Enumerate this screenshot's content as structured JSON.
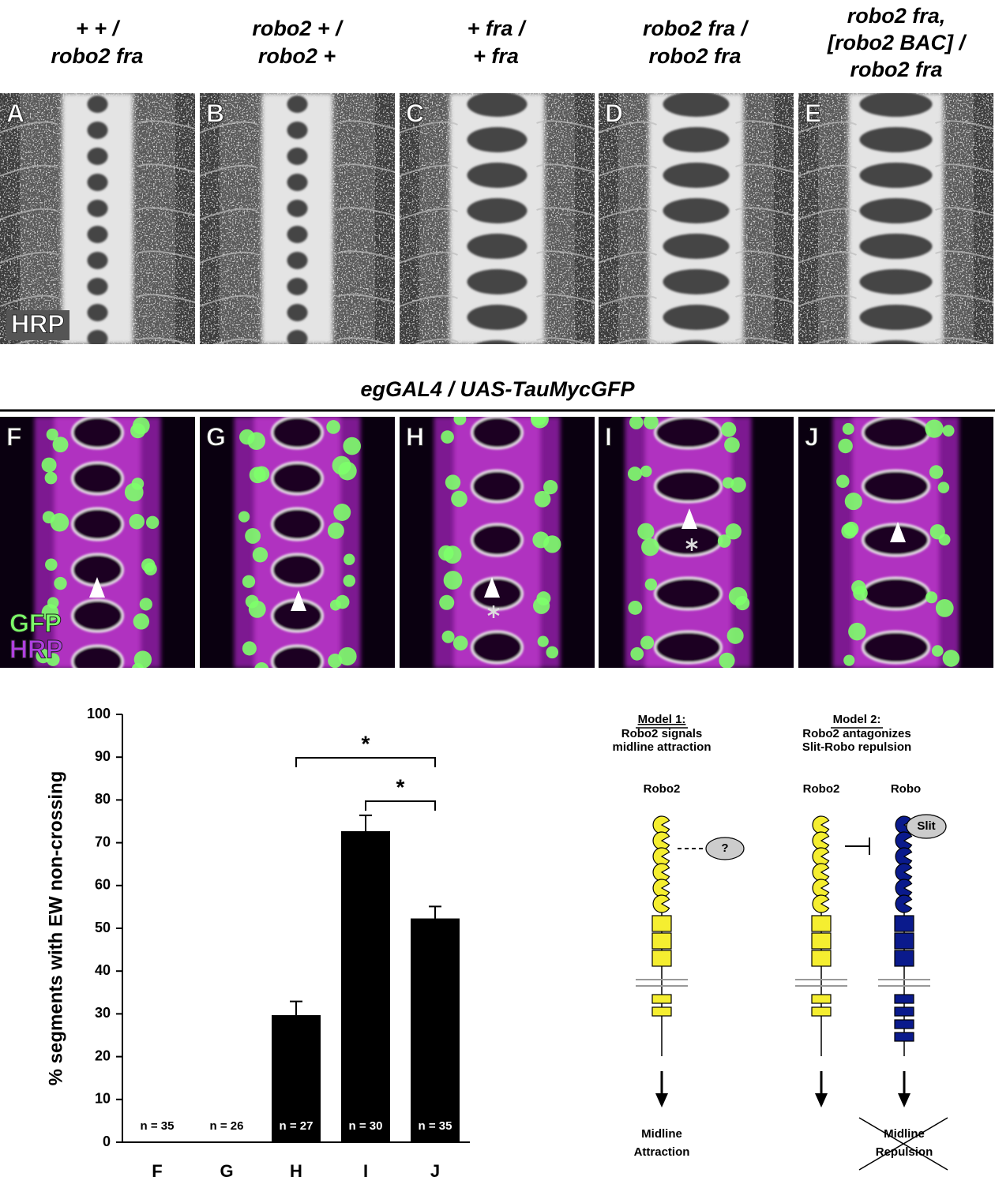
{
  "panels_top": {
    "genotypes": [
      [
        "+ + /",
        "robo2 fra"
      ],
      [
        "robo2 + /",
        "robo2 +"
      ],
      [
        "+ fra /",
        "+ fra"
      ],
      [
        "robo2 fra /",
        "robo2 fra"
      ],
      [
        "robo2 fra,",
        "[robo2 BAC] /",
        "robo2 fra"
      ]
    ],
    "letters": [
      "A",
      "B",
      "C",
      "D",
      "E"
    ],
    "stain": "HRP"
  },
  "panels_bottom": {
    "title": "egGAL4 / UAS-TauMycGFP",
    "letters": [
      "F",
      "G",
      "H",
      "I",
      "J"
    ],
    "stains": [
      "GFP",
      "HRP"
    ]
  },
  "chart_data": {
    "type": "bar",
    "ylabel": "% segments with EW non-crossing",
    "categories": [
      "F",
      "G",
      "H",
      "I",
      "J"
    ],
    "values": [
      0,
      0,
      29.7,
      72.7,
      52.3
    ],
    "errors": [
      null,
      null,
      3.2,
      3.7,
      2.8
    ],
    "n_labels": [
      "n = 35",
      "n = 26",
      "n = 27",
      "n = 30",
      "n = 35"
    ],
    "color": "#000000",
    "ylim": [
      0,
      100
    ],
    "yticks": [
      0,
      10,
      20,
      30,
      40,
      50,
      60,
      70,
      80,
      90,
      100
    ],
    "significance": [
      {
        "from": "H",
        "to": "J",
        "label": "*"
      },
      {
        "from": "I",
        "to": "J",
        "label": "*"
      }
    ]
  },
  "diagram": {
    "model1": {
      "title": "Model 1:",
      "subtitle": [
        "Robo2 signals",
        "midline attraction"
      ],
      "receptor": "Robo2",
      "partner": "?",
      "output": [
        "Midline",
        "Attraction"
      ]
    },
    "model2": {
      "title": "Model 2:",
      "subtitle": [
        "Robo2 antagonizes",
        "Slit-Robo repulsion"
      ],
      "receptors": [
        "Robo2",
        "Robo"
      ],
      "ligand": "Slit",
      "output": [
        "Midline",
        "Repulsion"
      ]
    }
  }
}
